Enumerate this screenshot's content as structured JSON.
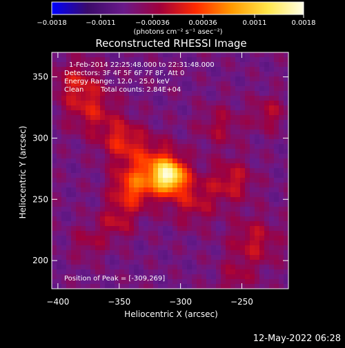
{
  "colors": {
    "background": "#000000",
    "foreground": "#ffffff",
    "colorbar_stops": [
      "#0000ff",
      "#3b0b6a",
      "#6a1a8a",
      "#a0003c",
      "#ff2a00",
      "#ff9a00",
      "#ffe64a",
      "#ffffe6"
    ]
  },
  "chart_data": {
    "type": "heatmap",
    "title": "Reconstructed RHESSI Image",
    "xlabel": "Heliocentric X (arcsec)",
    "ylabel": "Heliocentric Y (arcsec)",
    "xlim": [
      -405,
      -212
    ],
    "ylim": [
      177,
      370
    ],
    "x_ticks": [
      -400,
      -350,
      -300,
      -250
    ],
    "y_ticks": [
      200,
      250,
      300,
      350
    ],
    "colorbar": {
      "min": -0.0018,
      "max": 0.0018,
      "tick_values": [
        -0.0018,
        -0.0011,
        -0.00036,
        0.00036,
        0.0011,
        0.0018
      ],
      "tick_labels": [
        "−0.0018",
        "−0.0011",
        "−0.00036",
        "0.00036",
        "0.0011",
        "0.0018"
      ],
      "unit_label": "(photons cm⁻² s⁻¹ asec⁻²)"
    },
    "annotations": {
      "time_range": "1-Feb-2014 22:25:48.000 to 22:31:48.000",
      "detectors": "Detectors: 3F 4F 5F 6F 7F 8F, Att 0",
      "energy_range": "Energy Range: 12.0 - 25.0 keV",
      "algorithm": "Clean",
      "total_counts": "Total counts: 2.84E+04",
      "peak": "Position of Peak = [-309,269]"
    },
    "peak": [
      -309,
      269
    ],
    "sources": [
      {
        "x": -309,
        "y": 269,
        "amplitude": 0.0018,
        "sigma": 9
      },
      {
        "x": -322,
        "y": 276,
        "amplitude": 0.0009,
        "sigma": 15
      },
      {
        "x": -340,
        "y": 258,
        "amplitude": 0.0009,
        "sigma": 12
      },
      {
        "x": -348,
        "y": 298,
        "amplitude": 0.00075,
        "sigma": 12
      },
      {
        "x": -372,
        "y": 322,
        "amplitude": 0.0006,
        "sigma": 14
      },
      {
        "x": -385,
        "y": 345,
        "amplitude": 0.0006,
        "sigma": 13
      },
      {
        "x": -290,
        "y": 250,
        "amplitude": 0.0006,
        "sigma": 14
      },
      {
        "x": -352,
        "y": 232,
        "amplitude": 0.00055,
        "sigma": 10
      },
      {
        "x": -375,
        "y": 215,
        "amplitude": 0.0004,
        "sigma": 10
      },
      {
        "x": -258,
        "y": 265,
        "amplitude": 0.00065,
        "sigma": 12
      },
      {
        "x": -240,
        "y": 215,
        "amplitude": 0.0006,
        "sigma": 14
      },
      {
        "x": -268,
        "y": 310,
        "amplitude": 0.00045,
        "sigma": 12
      },
      {
        "x": -228,
        "y": 320,
        "amplitude": 0.0005,
        "sigma": 10
      },
      {
        "x": -255,
        "y": 185,
        "amplitude": 0.0004,
        "sigma": 10
      }
    ]
  },
  "footer": {
    "timestamp": "12-May-2022 06:28"
  }
}
